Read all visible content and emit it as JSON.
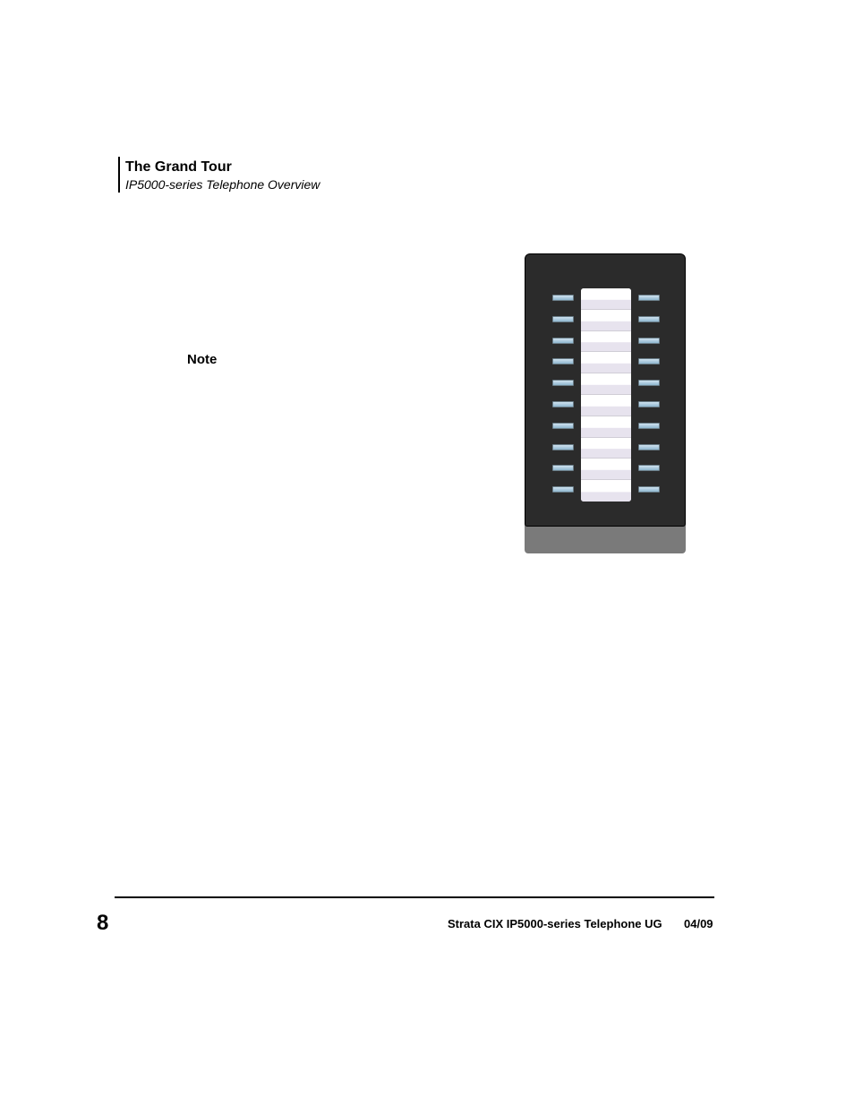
{
  "header": {
    "title": "The Grand Tour",
    "subtitle": "IP5000-series Telephone Overview"
  },
  "note": {
    "label": "Note"
  },
  "footer": {
    "page_number": "8",
    "doc_title": "Strata CIX IP5000-series Telephone UG",
    "date": "04/09"
  },
  "device": {
    "type": "infographic",
    "description": "Key expansion module / DSS console",
    "body_color": "#2b2b2b",
    "base_color": "#7a7a7a",
    "label_strip_bg": "#ffffff",
    "label_strip_shade": "#e7e3ee",
    "button_color_top": "#cfe2ef",
    "button_color_bottom": "#8fb7cf",
    "button_border": "#6a7d88",
    "rows": 10,
    "button_columns": 2
  }
}
